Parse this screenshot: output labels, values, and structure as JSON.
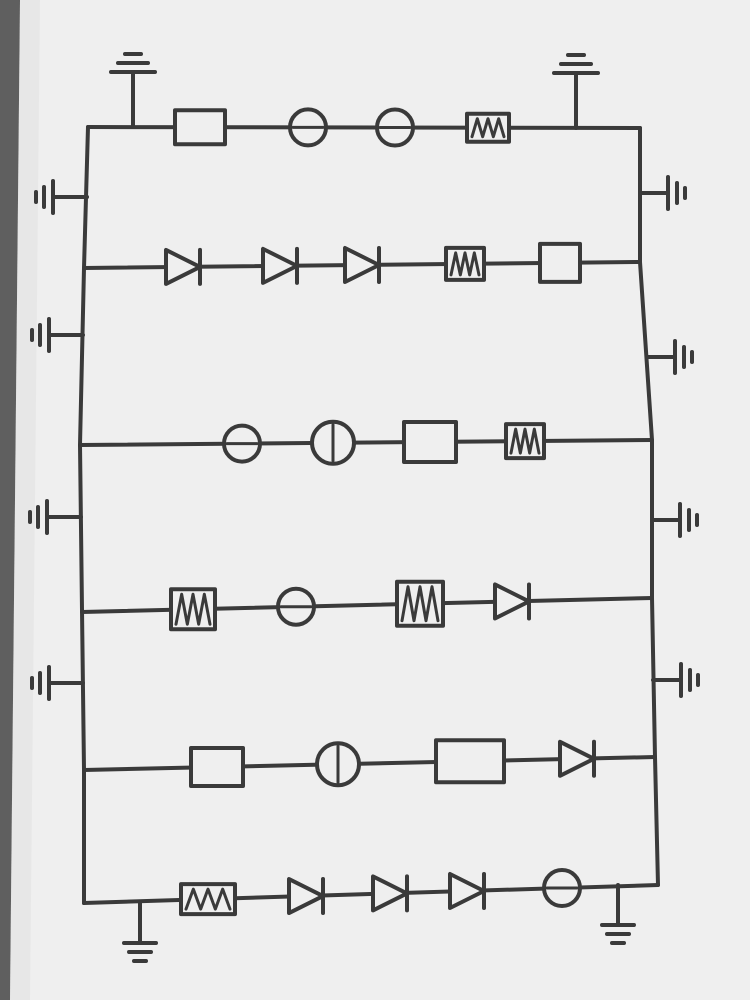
{
  "title": "",
  "colors": {
    "ink": "#3a3a3a",
    "paper": "#efefef",
    "paper_shadow": "#d9d9d9",
    "desk": "#5f5f5f"
  },
  "circuit": {
    "rails": [
      "left-rail",
      "right-rail"
    ],
    "branches": [
      {
        "id": "branch-1",
        "components": [
          "resistor",
          "lamp",
          "lamp",
          "coil"
        ],
        "end_grounds": [
          "ground",
          "ground"
        ]
      },
      {
        "id": "branch-2",
        "components": [
          "diode",
          "diode",
          "diode",
          "coil",
          "resistor"
        ]
      },
      {
        "id": "branch-3",
        "components": [
          "lamp",
          "lamp",
          "resistor",
          "coil"
        ]
      },
      {
        "id": "branch-4",
        "components": [
          "coil",
          "lamp",
          "coil",
          "diode"
        ]
      },
      {
        "id": "branch-5",
        "components": [
          "resistor",
          "lamp",
          "resistor",
          "diode"
        ]
      },
      {
        "id": "branch-6",
        "components": [
          "coil",
          "diode",
          "diode",
          "diode",
          "lamp"
        ],
        "end_grounds": [
          "ground",
          "ground"
        ]
      }
    ],
    "left_side_grounds": 4,
    "right_side_grounds": 4
  }
}
